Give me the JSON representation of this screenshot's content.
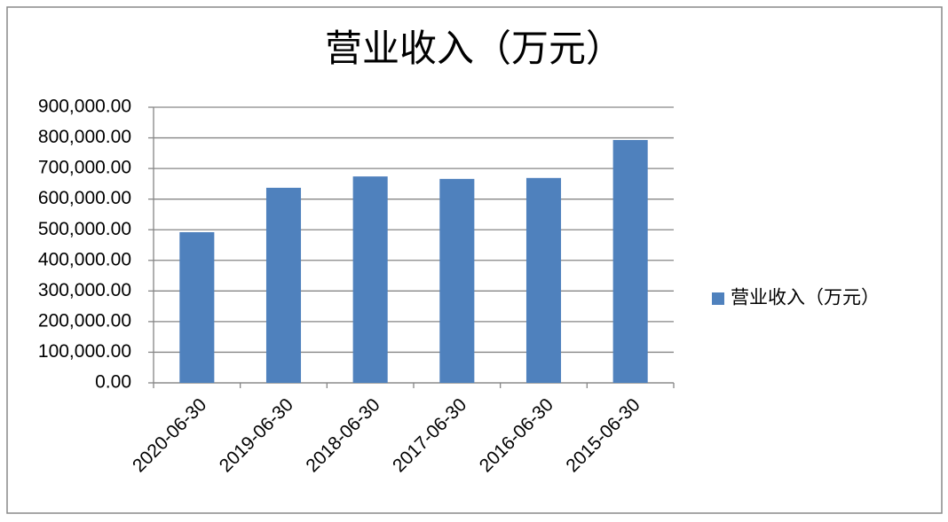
{
  "chart_data": {
    "type": "bar",
    "title": "营业收入（万元）",
    "categories": [
      "2020-06-30",
      "2019-06-30",
      "2018-06-30",
      "2017-06-30",
      "2016-06-30",
      "2015-06-30"
    ],
    "series": [
      {
        "name": "营业收入（万元）",
        "color": "#4f81bd",
        "values": [
          492000,
          637000,
          674000,
          666000,
          669000,
          793000
        ]
      }
    ],
    "ylim": [
      0,
      900000
    ],
    "yticks": [
      {
        "value": 0,
        "label": "0.00"
      },
      {
        "value": 100000,
        "label": "100,000.00"
      },
      {
        "value": 200000,
        "label": "200,000.00"
      },
      {
        "value": 300000,
        "label": "300,000.00"
      },
      {
        "value": 400000,
        "label": "400,000.00"
      },
      {
        "value": 500000,
        "label": "500,000.00"
      },
      {
        "value": 600000,
        "label": "600,000.00"
      },
      {
        "value": 700000,
        "label": "700,000.00"
      },
      {
        "value": 800000,
        "label": "800,000.00"
      },
      {
        "value": 900000,
        "label": "900,000.00"
      }
    ],
    "grid": true,
    "legend": "right"
  }
}
